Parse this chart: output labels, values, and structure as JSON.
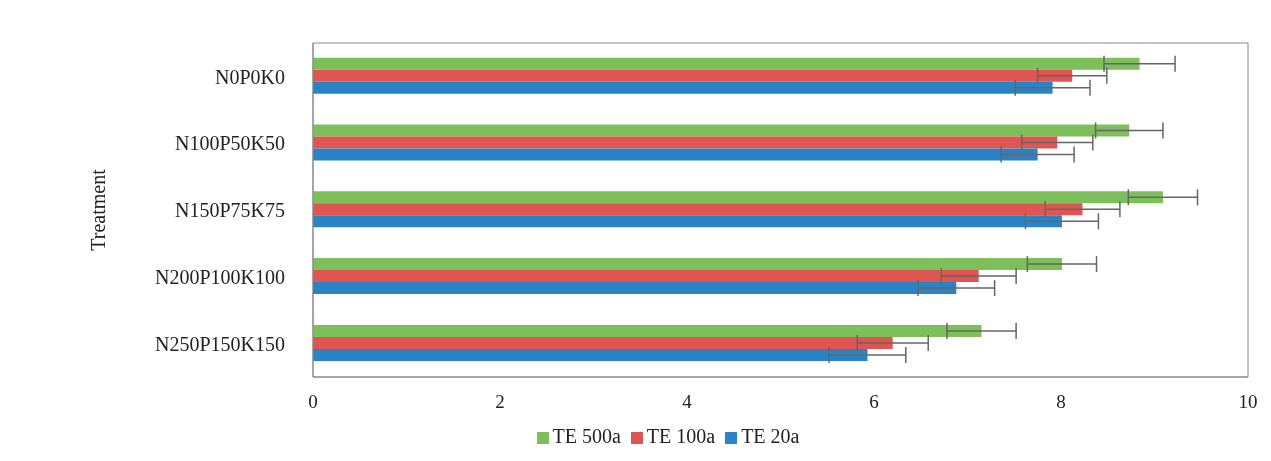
{
  "chart_data": {
    "type": "bar",
    "orientation": "horizontal",
    "ylabel": "Treatment",
    "categories": [
      "N0P0K0",
      "N100P50K50",
      "N150P75K75",
      "N200P100K100",
      "N250P150K150"
    ],
    "series": [
      {
        "name": "TE 500a",
        "color": "#7dbf5a",
        "values": [
          8.84,
          8.73,
          9.09,
          8.01,
          7.15
        ],
        "errors": [
          0.38,
          0.36,
          0.37,
          0.37,
          0.37
        ]
      },
      {
        "name": "TE 100a",
        "color": "#e05552",
        "values": [
          8.12,
          7.96,
          8.23,
          7.12,
          6.2
        ],
        "errors": [
          0.37,
          0.38,
          0.4,
          0.4,
          0.38
        ]
      },
      {
        "name": "TE 20a",
        "color": "#2a83c4",
        "values": [
          7.91,
          7.75,
          8.01,
          6.88,
          5.93
        ],
        "errors": [
          0.4,
          0.39,
          0.39,
          0.41,
          0.41
        ]
      }
    ],
    "xlim": [
      0,
      10
    ],
    "xticks": [
      0,
      2,
      4,
      6,
      8,
      10
    ],
    "grid": false,
    "legend": "bottom"
  }
}
